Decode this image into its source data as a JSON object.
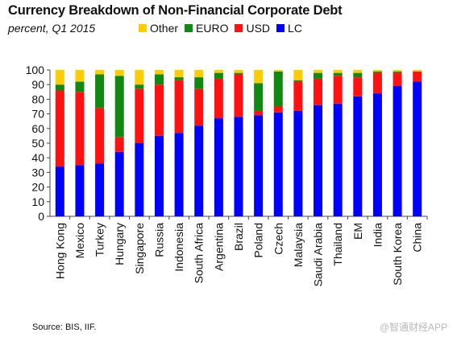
{
  "chart_data": {
    "type": "bar",
    "stacked": true,
    "title": "Currency Breakdown of Non-Financial Corporate Debt",
    "subtitle": "percent, Q1 2015",
    "source": "Source: BIS, IIF.",
    "ylim": [
      0,
      100
    ],
    "yticks": [
      0,
      10,
      20,
      30,
      40,
      50,
      60,
      70,
      80,
      90,
      100
    ],
    "grid": false,
    "legend_position": "top",
    "categories": [
      "Hong Kong",
      "Mexico",
      "Turkey",
      "Hungary",
      "Singapore",
      "Russia",
      "Indonesia",
      "South Africa",
      "Argentina",
      "Brazil",
      "Poland",
      "Czech",
      "Malaysia",
      "Saudi Arabia",
      "Thailand",
      "EM",
      "India",
      "South Korea",
      "China"
    ],
    "series": [
      {
        "name": "LC",
        "color": "#0000ff",
        "values": [
          34,
          35,
          36,
          44,
          50,
          55,
          57,
          62,
          67,
          68,
          69,
          71,
          72,
          76,
          77,
          82,
          84,
          89,
          92
        ]
      },
      {
        "name": "USD",
        "color": "#ff1111",
        "values": [
          52,
          50,
          38,
          10,
          37,
          35,
          36,
          25,
          27,
          29,
          3,
          4,
          20,
          18,
          19,
          13,
          14,
          9,
          7
        ]
      },
      {
        "name": "EURO",
        "color": "#118811",
        "values": [
          4,
          7,
          23,
          42,
          3,
          7,
          2,
          8,
          4,
          1,
          19,
          24,
          1,
          4,
          2,
          3,
          1,
          1,
          0
        ]
      },
      {
        "name": "Other",
        "color": "#ffcc00",
        "values": [
          10,
          8,
          3,
          4,
          10,
          3,
          5,
          5,
          2,
          2,
          9,
          1,
          7,
          2,
          2,
          2,
          1,
          1,
          1
        ]
      }
    ],
    "legend_order": [
      "Other",
      "EURO",
      "USD",
      "LC"
    ]
  },
  "watermark": "@智通财经APP"
}
